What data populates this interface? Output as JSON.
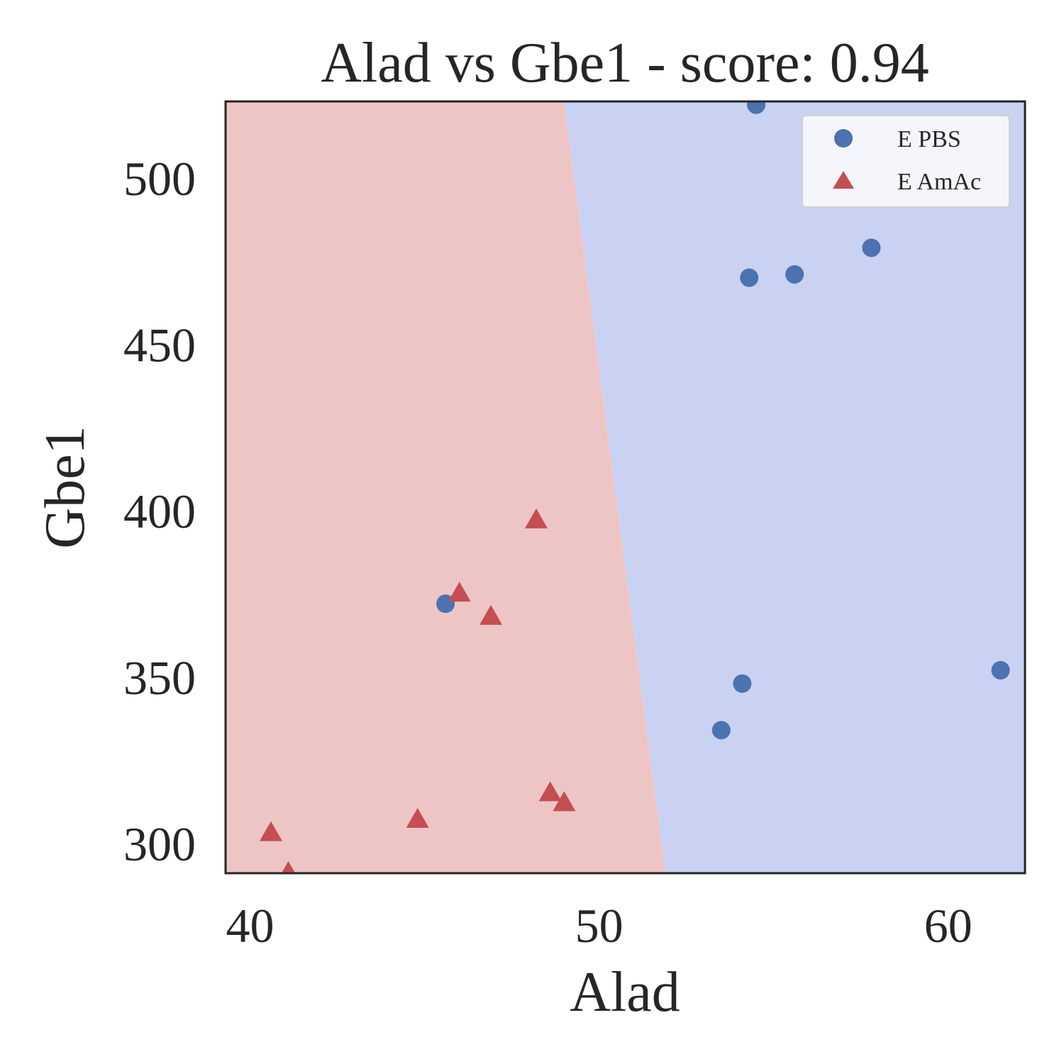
{
  "chart_data": {
    "type": "scatter",
    "title": "Alad vs Gbe1 - score: 0.94",
    "xlabel": "Alad",
    "ylabel": "Gbe1",
    "xlim": [
      39.3,
      62.2
    ],
    "ylim": [
      291,
      523
    ],
    "x_ticks": [
      40,
      50,
      60
    ],
    "y_ticks": [
      300,
      350,
      400,
      450,
      500
    ],
    "grid": false,
    "legend_position": "top-right",
    "decision_boundary": {
      "points": [
        [
          49.0,
          523
        ],
        [
          51.9,
          291
        ]
      ],
      "left_region": "E AmAc",
      "right_region": "E PBS"
    },
    "series": [
      {
        "name": "E PBS",
        "marker": "circle",
        "color": "#4c72b0",
        "region_color": "#c9d2f2",
        "points": [
          [
            54.5,
            522
          ],
          [
            57.8,
            479
          ],
          [
            55.6,
            471
          ],
          [
            54.3,
            470
          ],
          [
            45.6,
            372
          ],
          [
            54.1,
            348
          ],
          [
            53.5,
            334
          ],
          [
            61.5,
            352
          ]
        ]
      },
      {
        "name": "E AmAc",
        "marker": "triangle",
        "color": "#c44e52",
        "region_color": "#eec5c5",
        "points": [
          [
            48.2,
            397
          ],
          [
            46.0,
            375
          ],
          [
            46.9,
            368
          ],
          [
            48.6,
            315
          ],
          [
            49.0,
            312
          ],
          [
            44.8,
            307
          ],
          [
            40.6,
            303
          ],
          [
            41.1,
            291
          ]
        ]
      }
    ]
  }
}
